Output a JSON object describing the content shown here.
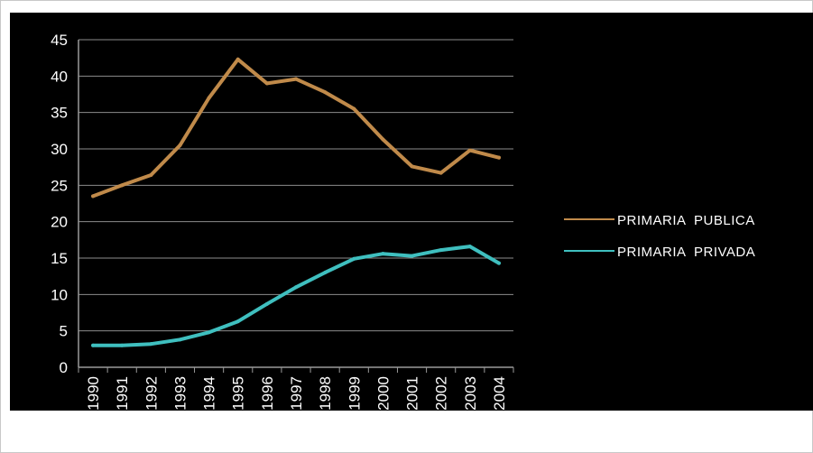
{
  "chart_data": {
    "type": "line",
    "title": "",
    "xlabel": "",
    "ylabel": "",
    "x": [
      "1990",
      "1991",
      "1992",
      "1993",
      "1994",
      "1995",
      "1996",
      "1997",
      "1998",
      "1999",
      "2000",
      "2001",
      "2002",
      "2003",
      "2004"
    ],
    "ylim": [
      0,
      45
    ],
    "yticks": [
      0,
      5,
      10,
      15,
      20,
      25,
      30,
      35,
      40,
      45
    ],
    "grid": true,
    "legend_position": "right",
    "background_color": "#000000",
    "series": [
      {
        "name": "PRIMARIA  PUBLICA",
        "color": "#c08a4a",
        "values": [
          23.5,
          25.0,
          26.4,
          30.5,
          37.0,
          42.3,
          39.0,
          39.6,
          37.8,
          35.5,
          31.3,
          27.6,
          26.7,
          29.8,
          28.8
        ]
      },
      {
        "name": "PRIMARIA  PRIVADA",
        "color": "#3fbfbf",
        "values": [
          3.0,
          3.0,
          3.2,
          3.8,
          4.8,
          6.3,
          8.7,
          11.0,
          13.0,
          14.9,
          15.6,
          15.3,
          16.1,
          16.6,
          14.3
        ]
      }
    ]
  }
}
